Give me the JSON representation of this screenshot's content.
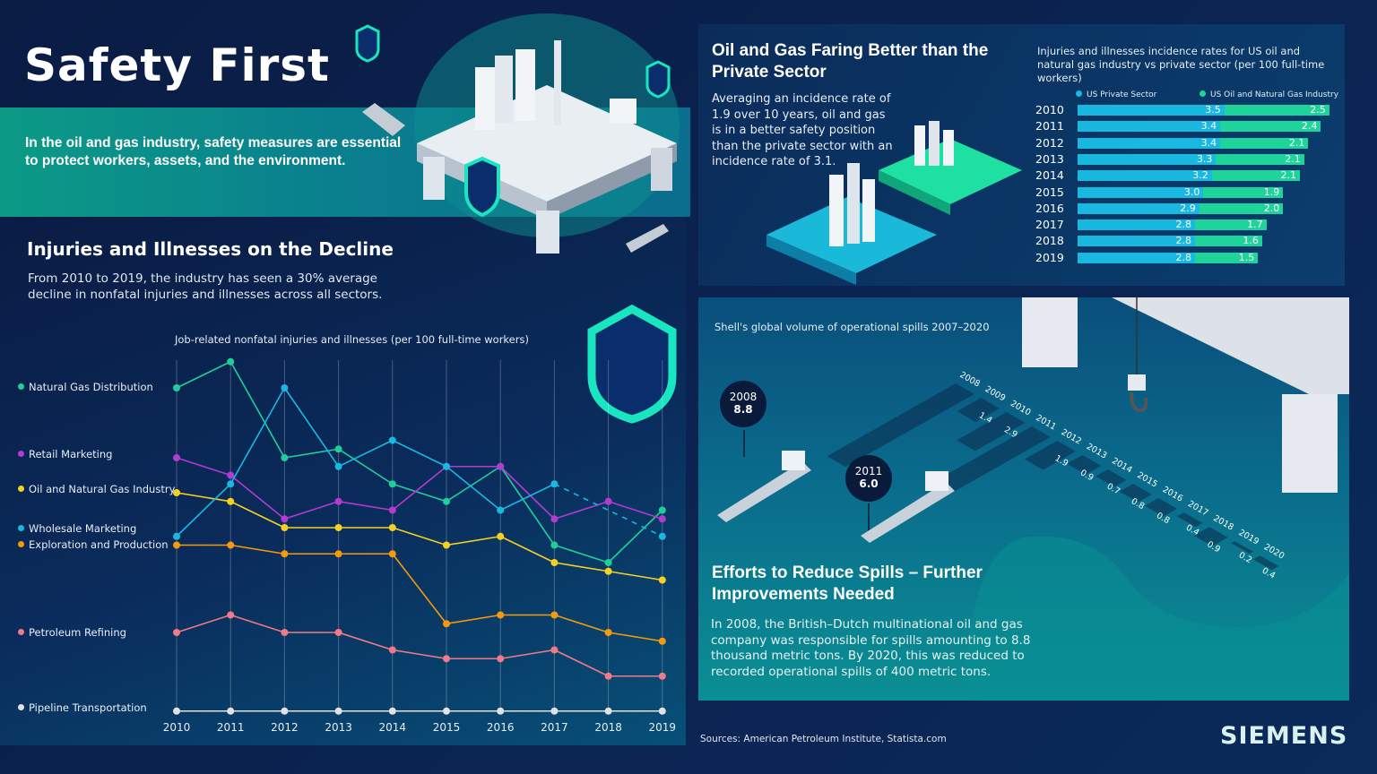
{
  "header": {
    "title": "Safety First",
    "intro": "In the oil and gas industry, safety measures are essential to protect workers, assets, and the environment."
  },
  "injuries": {
    "heading": "Injuries and Illnesses on the Decline",
    "text": "From 2010 to 2019, the industry has seen a 30% average decline in nonfatal injuries and illnesses across all sectors."
  },
  "comparison": {
    "heading": "Oil and Gas Faring Better than the Private Sector",
    "text": "Averaging an incidence rate of 1.9 over 10 years, oil and gas is in a better safety position than the private sector with an incidence rate of 3.1."
  },
  "spills": {
    "heading": "Efforts to Reduce Spills – Further Improvements Needed",
    "text": "In 2008, the British–Dutch multinational oil and gas company was responsible for spills amounting to 8.8 thousand metric tons. By 2020, this was reduced to recorded operational spills of 400 metric tons."
  },
  "footer": {
    "sources": "Sources: American Petroleum Institute, Statista.com",
    "logo": "SIEMENS"
  },
  "chart_data": [
    {
      "type": "line",
      "title": "Job-related nonfatal injuries and illnesses (per 100 full-time workers)",
      "categories": [
        "2010",
        "2011",
        "2012",
        "2013",
        "2014",
        "2015",
        "2016",
        "2017",
        "2018",
        "2019"
      ],
      "grid": "vertical",
      "legend": "left",
      "series": [
        {
          "name": "Natural Gas Distribution",
          "color": "#1fcf9a",
          "values": [
            3.7,
            4.0,
            2.9,
            3.0,
            2.6,
            2.4,
            2.8,
            1.9,
            1.7,
            2.3
          ]
        },
        {
          "name": "Retail Marketing",
          "color": "#b23bd0",
          "values": [
            2.9,
            2.7,
            2.2,
            2.4,
            2.3,
            2.8,
            2.8,
            2.2,
            2.4,
            2.2
          ]
        },
        {
          "name": "Oil and Natural Gas Industry",
          "color": "#f5d122",
          "values": [
            2.5,
            2.4,
            2.1,
            2.1,
            2.1,
            1.9,
            2.0,
            1.7,
            1.6,
            1.5
          ]
        },
        {
          "name": "Wholesale Marketing",
          "color": "#19b8e0",
          "values": [
            2.0,
            2.6,
            3.7,
            2.8,
            3.1,
            2.8,
            2.3,
            2.6,
            null,
            2.0
          ]
        },
        {
          "name": "Exploration and Production",
          "color": "#f59a0c",
          "values": [
            1.9,
            1.9,
            1.8,
            1.8,
            1.8,
            1.0,
            1.1,
            1.1,
            0.9,
            0.8
          ]
        },
        {
          "name": "Petroleum Refining",
          "color": "#f07a86",
          "values": [
            0.9,
            1.1,
            0.9,
            0.9,
            0.7,
            0.6,
            0.6,
            0.7,
            0.4,
            0.4
          ]
        },
        {
          "name": "Pipeline Transportation",
          "color": "#e2e2e2",
          "values": [
            0,
            0,
            0,
            0,
            0,
            0,
            0,
            0,
            0,
            0
          ]
        }
      ]
    },
    {
      "type": "bar",
      "stacked": true,
      "title": "Injuries and illnesses incidence rates for US oil and natural gas industry vs private sector (per 100 full-time workers)",
      "categories": [
        "2010",
        "2011",
        "2012",
        "2013",
        "2014",
        "2015",
        "2016",
        "2017",
        "2018",
        "2019"
      ],
      "legend": "top",
      "series": [
        {
          "name": "US Private Sector",
          "color": "#19b8e0",
          "values": [
            3.5,
            3.4,
            3.4,
            3.3,
            3.2,
            3.0,
            2.9,
            2.8,
            2.8,
            2.8
          ]
        },
        {
          "name": "US Oil and Natural Gas Industry",
          "color": "#1fd49a",
          "values": [
            2.5,
            2.4,
            2.1,
            2.1,
            2.1,
            1.9,
            2.0,
            1.7,
            1.6,
            1.5
          ]
        }
      ]
    },
    {
      "type": "bar",
      "title": "Shell's global volume of operational spills 2007–2020",
      "categories": [
        "2008",
        "2009",
        "2010",
        "2011",
        "2012",
        "2013",
        "2014",
        "2015",
        "2016",
        "2017",
        "2018",
        "2019",
        "2020"
      ],
      "values": [
        8.8,
        1.4,
        2.9,
        6.0,
        1.9,
        0.9,
        0.7,
        0.8,
        0.8,
        0.4,
        0.9,
        0.2,
        0.4
      ],
      "callouts": [
        {
          "year": "2008",
          "value": "8.8"
        },
        {
          "year": "2011",
          "value": "6.0"
        }
      ]
    }
  ]
}
